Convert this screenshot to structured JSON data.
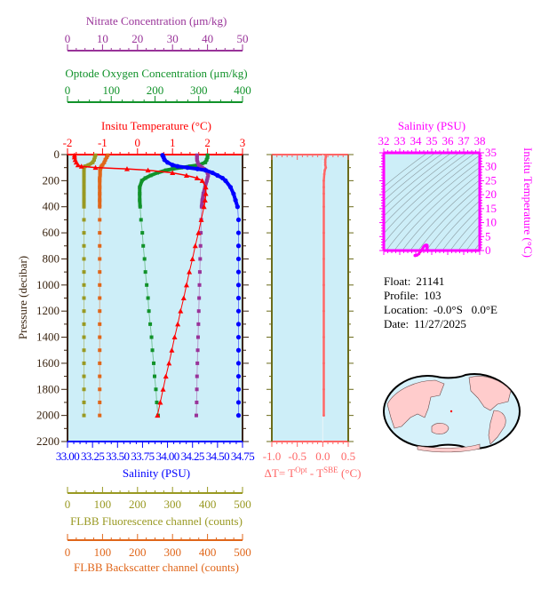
{
  "colors": {
    "temperature": "#ff0000",
    "salinity": "#0000ff",
    "oxygen": "#11922a",
    "nitrate": "#993399",
    "fluorescence": "#999922",
    "backscatter": "#e0661a",
    "delta_t": "#ff6666",
    "ts": "#ff00ff",
    "plot_background": "#cdeef8",
    "axis": "#3a2410",
    "land": "#ffcccc"
  },
  "info": {
    "float_label": "Float:",
    "float": "21141",
    "profile_label": "Profile:",
    "profile": "103",
    "location_label": "Location:",
    "location": "-0.0°S   0.0°E",
    "date_label": "Date:",
    "date": "11/27/2025"
  },
  "chart_data": [
    {
      "type": "line",
      "name": "profile",
      "ylabel": "Pressure (decibar)",
      "ylim": [
        2200,
        0
      ],
      "yticks": [
        0,
        200,
        400,
        600,
        800,
        1000,
        1200,
        1400,
        1600,
        1800,
        2000,
        2200
      ],
      "pressure": [
        5,
        20,
        40,
        60,
        80,
        90,
        100,
        110,
        120,
        140,
        160,
        180,
        200,
        250,
        300,
        350,
        400,
        500,
        600,
        700,
        800,
        900,
        1000,
        1100,
        1200,
        1300,
        1400,
        1500,
        1600,
        1700,
        1800,
        1900,
        2000
      ],
      "axes": [
        {
          "key": "nitrate",
          "title": "Nitrate Concentration (μm/kg)",
          "lim": [
            0,
            50
          ],
          "ticks": [
            0,
            10,
            20,
            30,
            40,
            50
          ],
          "position": "top-1"
        },
        {
          "key": "oxygen",
          "title": "Optode Oxygen Concentration (μm/kg)",
          "lim": [
            0,
            400
          ],
          "ticks": [
            0,
            100,
            200,
            300,
            400
          ],
          "position": "top-2"
        },
        {
          "key": "temperature",
          "title": "Insitu Temperature (°C)",
          "lim": [
            -2,
            3
          ],
          "ticks": [
            -2,
            -1,
            0,
            1,
            2,
            3
          ],
          "position": "top-3"
        },
        {
          "key": "salinity",
          "title": "Salinity (PSU)",
          "lim": [
            33.0,
            34.75
          ],
          "ticks": [
            "33.00",
            "33.25",
            "33.50",
            "33.75",
            "34.00",
            "34.25",
            "34.50",
            "34.75"
          ],
          "position": "bottom-1"
        },
        {
          "key": "fluorescence",
          "title": "FLBB Fluorescence channel (counts)",
          "lim": [
            0,
            500
          ],
          "ticks": [
            0,
            100,
            200,
            300,
            400,
            500
          ],
          "position": "bottom-2"
        },
        {
          "key": "backscatter",
          "title": "FLBB Backscatter channel (counts)",
          "lim": [
            0,
            500
          ],
          "ticks": [
            0,
            100,
            200,
            300,
            400,
            500
          ],
          "position": "bottom-3"
        }
      ],
      "series": {
        "temperature": [
          -1.8,
          -1.8,
          -1.78,
          -1.75,
          -1.7,
          -1.6,
          -1.2,
          -0.3,
          0.3,
          1.0,
          1.4,
          1.7,
          1.85,
          1.95,
          1.95,
          1.93,
          1.9,
          1.82,
          1.74,
          1.65,
          1.57,
          1.48,
          1.4,
          1.32,
          1.23,
          1.15,
          1.06,
          0.98,
          0.9,
          0.81,
          0.73,
          0.65,
          0.57
        ],
        "salinity": [
          33.95,
          33.96,
          33.97,
          34.0,
          34.05,
          34.1,
          34.2,
          34.3,
          34.38,
          34.45,
          34.5,
          34.55,
          34.58,
          34.63,
          34.66,
          34.68,
          34.7,
          34.71,
          34.71,
          34.71,
          34.71,
          34.71,
          34.71,
          34.71,
          34.71,
          34.71,
          34.71,
          34.71,
          34.71,
          34.71,
          34.71,
          34.71,
          34.71
        ],
        "oxygen": [
          320,
          320,
          318,
          315,
          300,
          280,
          260,
          240,
          225,
          205,
          190,
          178,
          170,
          165,
          165,
          165,
          166,
          168,
          171,
          173,
          176,
          178,
          181,
          184,
          186,
          189,
          192,
          194,
          197,
          199,
          202,
          204,
          207
        ],
        "nitrate": [
          37,
          37,
          37,
          37.2,
          37.5,
          38,
          38.5,
          39,
          39.5,
          40,
          40.2,
          40,
          39.8,
          39.3,
          38.8,
          38.5,
          38.3,
          38.2,
          38.1,
          38,
          37.9,
          37.8,
          37.7,
          37.6,
          37.5,
          37.4,
          37.3,
          37.2,
          37.1,
          37,
          36.95,
          36.9,
          36.8
        ],
        "fluorescence": [
          80,
          78,
          76,
          72,
          60,
          50,
          47,
          47,
          47,
          47,
          47,
          47,
          47,
          47,
          47,
          47,
          47,
          47,
          47,
          47,
          47,
          47,
          47,
          47,
          47,
          47,
          47,
          47,
          47,
          47,
          47,
          47,
          47
        ],
        "backscatter": [
          115,
          112,
          108,
          105,
          100,
          97,
          95,
          94,
          93,
          93,
          93,
          92,
          92,
          92,
          92,
          92,
          92,
          92,
          92,
          92,
          92,
          92,
          92,
          92,
          92,
          92,
          92,
          92,
          92,
          92,
          92,
          92,
          92
        ]
      }
    },
    {
      "type": "line",
      "name": "delta-t",
      "xlabel_parts": {
        "prefix": "ΔT= T",
        "sup1": "Opt",
        "mid": " - T",
        "sup2": "SBE",
        "suffix": " (°C)"
      },
      "xlim": [
        -1.0,
        0.5
      ],
      "xticks": [
        "-1.0",
        "-0.5",
        "0.0",
        "0.5"
      ],
      "ylim": [
        2200,
        0
      ],
      "pressure": [
        5,
        20,
        40,
        60,
        80,
        100,
        120,
        150,
        200,
        250,
        300,
        400,
        600,
        800,
        1000,
        1200,
        1400,
        1600,
        1800,
        2000
      ],
      "values": [
        0.06,
        0.06,
        0.05,
        0.05,
        0.05,
        0.06,
        0.04,
        0.03,
        0.02,
        0.02,
        0.02,
        0.02,
        0.02,
        0.02,
        0.02,
        0.02,
        0.02,
        0.02,
        0.02,
        0.02
      ]
    },
    {
      "type": "scatter",
      "name": "ts-diagram",
      "xlabel": "Salinity (PSU)",
      "ylabel": "Insitu Temperature (°C)",
      "xlim": [
        32,
        38
      ],
      "ylim": [
        0,
        35
      ],
      "xticks": [
        32,
        33,
        34,
        35,
        36,
        37,
        38
      ],
      "yticks": [
        0,
        5,
        10,
        15,
        20,
        25,
        30,
        35
      ],
      "density_contours": true
    }
  ]
}
